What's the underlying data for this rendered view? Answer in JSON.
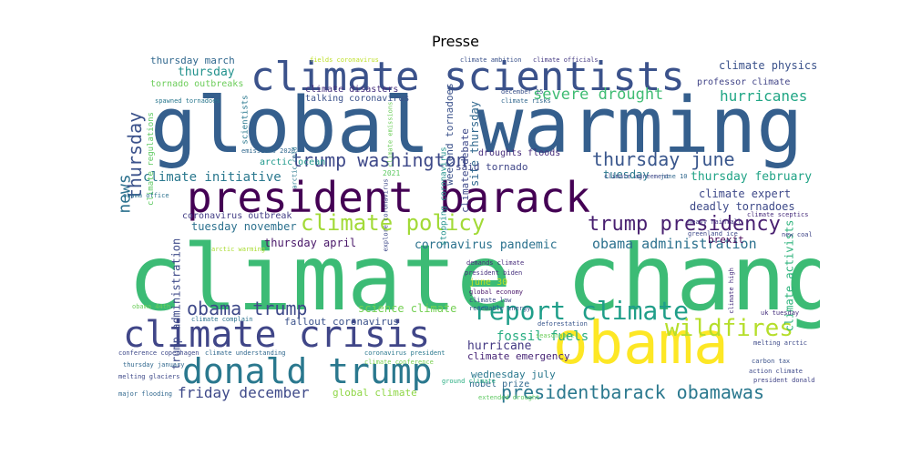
{
  "title": "Presse",
  "words": [
    {
      "text": "climate change",
      "color": "#3cbb75"
    },
    {
      "text": "global warming",
      "color": "#355f8d"
    },
    {
      "text": "president barack",
      "color": "#440154"
    },
    {
      "text": "climate scientists",
      "color": "#3b528b"
    },
    {
      "text": "obama",
      "color": "#fde725"
    },
    {
      "text": "climate crisis",
      "color": "#404688"
    },
    {
      "text": "donald trump",
      "color": "#2a788e"
    },
    {
      "text": "report climate",
      "color": "#1f9e89"
    },
    {
      "text": "wildfires",
      "color": "#b5de2b"
    },
    {
      "text": "presidentbarack obamawas",
      "color": "#2a788e"
    },
    {
      "text": "climate policy",
      "color": "#a2da37"
    },
    {
      "text": "trump presidency",
      "color": "#481f70"
    },
    {
      "text": "trump washington",
      "color": "#3e4989"
    },
    {
      "text": "thursday june",
      "color": "#39568c"
    },
    {
      "text": "news",
      "color": "#2c718e"
    },
    {
      "text": "thursday",
      "color": "#3b528b"
    },
    {
      "text": "obama trump",
      "color": "#3e4989"
    },
    {
      "text": "severe drought",
      "color": "#3fbc73"
    },
    {
      "text": "hurricanes",
      "color": "#21a685"
    },
    {
      "text": "climate initiative",
      "color": "#2a788e"
    },
    {
      "text": "obama administration",
      "color": "#2c718e"
    },
    {
      "text": "friday december",
      "color": "#3e4989"
    },
    {
      "text": "fossil fuels",
      "color": "#27ad81"
    },
    {
      "text": "climate activists",
      "color": "#2eb37c"
    },
    {
      "text": "coronavirus pandemic",
      "color": "#2c728e"
    },
    {
      "text": "thursday february",
      "color": "#20a386"
    },
    {
      "text": "climate physics",
      "color": "#3b528b"
    },
    {
      "text": "trump administration",
      "color": "#3e4a89"
    },
    {
      "text": "climate expert",
      "color": "#3e4989"
    },
    {
      "text": "deadly tornadoes",
      "color": "#3e4a89"
    },
    {
      "text": "thursday march",
      "color": "#31688e"
    },
    {
      "text": "thursday",
      "color": "#21918c"
    },
    {
      "text": "science climate",
      "color": "#75d054"
    },
    {
      "text": "hurricane",
      "color": "#443983"
    },
    {
      "text": "thursday april",
      "color": "#481668"
    },
    {
      "text": "global climate",
      "color": "#8ed645"
    },
    {
      "text": "tuesday november",
      "color": "#2c718e"
    },
    {
      "text": "tuesday",
      "color": "#2a788e"
    },
    {
      "text": "fallout coronavirus",
      "color": "#3b528b"
    },
    {
      "text": "climate emergency",
      "color": "#482576"
    },
    {
      "text": "wednesday july",
      "color": "#2a788e"
    },
    {
      "text": "site thursday",
      "color": "#31688e"
    },
    {
      "text": "weekend tornadoes",
      "color": "#3b528b"
    },
    {
      "text": "climate debate",
      "color": "#3e4989"
    },
    {
      "text": "brexit",
      "color": "#440154"
    },
    {
      "text": "said tornado",
      "color": "#404688"
    },
    {
      "text": "droughts floods",
      "color": "#472d7b"
    },
    {
      "text": "coronavirus outbreak",
      "color": "#433e85"
    },
    {
      "text": "nobel prize",
      "color": "#31688e"
    },
    {
      "text": "climate disasters",
      "color": "#46307e"
    },
    {
      "text": "talking coronavirus",
      "color": "#3b528b"
    },
    {
      "text": "june 30",
      "color": "#bddf26"
    },
    {
      "text": "professor climate",
      "color": "#414487"
    },
    {
      "text": "tornado outbreaks",
      "color": "#6ccd5a"
    },
    {
      "text": "climate regulations",
      "color": "#5ec962"
    },
    {
      "text": "scientists",
      "color": "#2a788e"
    },
    {
      "text": "arctic ocean",
      "color": "#1f988b"
    },
    {
      "text": "stopping coronavirus",
      "color": "#21918c"
    },
    {
      "text": "climate ambition",
      "color": "#3b528b"
    },
    {
      "text": "climate officials",
      "color": "#443983"
    },
    {
      "text": "fields coronavirus",
      "color": "#bddf26"
    },
    {
      "text": "spawned tornadoes",
      "color": "#2a788e"
    },
    {
      "text": "december 15",
      "color": "#3b528b"
    },
    {
      "text": "climate risks",
      "color": "#31688e"
    },
    {
      "text": "emissions 2020",
      "color": "#31688e"
    },
    {
      "text": "2021",
      "color": "#5ec962"
    },
    {
      "text": "arctic cold",
      "color": "#2a788e"
    },
    {
      "text": "climate agreement",
      "color": "#3e4989"
    },
    {
      "text": "june 10",
      "color": "#31688e"
    },
    {
      "text": "climate sceptics",
      "color": "#472d7b"
    },
    {
      "text": "heavy rainfall",
      "color": "#443983"
    },
    {
      "text": "greenland ice",
      "color": "#3e4989"
    },
    {
      "text": "new coal",
      "color": "#404688"
    },
    {
      "text": "demands climate",
      "color": "#472c7a"
    },
    {
      "text": "president biden",
      "color": "#46307e"
    },
    {
      "text": "global economy",
      "color": "#481668"
    },
    {
      "text": "climate law",
      "color": "#3e4989"
    },
    {
      "text": "renewable energy",
      "color": "#39568c"
    },
    {
      "text": "arctic warming",
      "color": "#aadc32"
    },
    {
      "text": "obama office",
      "color": "#2c728e"
    },
    {
      "text": "environmental activists",
      "color": "#3b528b"
    },
    {
      "text": "obama 44th",
      "color": "#6ccd5a"
    },
    {
      "text": "climate complain",
      "color": "#2c728e"
    },
    {
      "text": "uk tuesday",
      "color": "#46307e"
    },
    {
      "text": "melting arctic",
      "color": "#3e4a89"
    },
    {
      "text": "carbon tax",
      "color": "#3b528b"
    },
    {
      "text": "action climate",
      "color": "#3e4989"
    },
    {
      "text": "president donald",
      "color": "#414487"
    },
    {
      "text": "conference copenhagen",
      "color": "#3e4989"
    },
    {
      "text": "thursday january",
      "color": "#31688e"
    },
    {
      "text": "melting glaciers",
      "color": "#3e4989"
    },
    {
      "text": "major flooding",
      "color": "#31688e"
    },
    {
      "text": "extended drought",
      "color": "#5ec962"
    },
    {
      "text": "deforestation",
      "color": "#39568c"
    },
    {
      "text": "coronavirus president",
      "color": "#2a788e"
    },
    {
      "text": "climate conference",
      "color": "#7ad151"
    },
    {
      "text": "climate understanding",
      "color": "#31688e"
    },
    {
      "text": "ground climate",
      "color": "#27ad81"
    },
    {
      "text": "seasonable",
      "color": "#6ccd5a"
    },
    {
      "text": "climate high",
      "color": "#46307e"
    },
    {
      "text": "climate emissions",
      "color": "#6ccd5a"
    },
    {
      "text": "explore coronavirus",
      "color": "#3e4989"
    }
  ]
}
